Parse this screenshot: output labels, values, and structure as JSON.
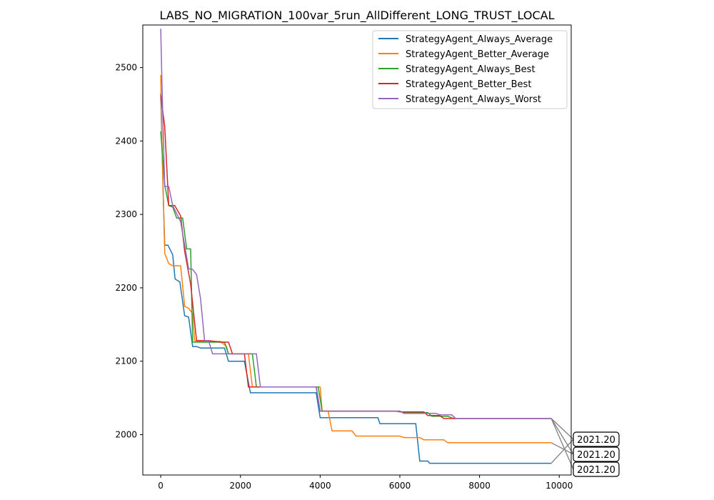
{
  "chart_data": {
    "type": "line",
    "title": "LABS_NO_MIGRATION_100var_5run_AllDifferent_LONG_TRUST_LOCAL",
    "xlabel": "",
    "ylabel": "",
    "xlim": [
      -450,
      10300
    ],
    "ylim": [
      1945,
      2558
    ],
    "xticks": [
      0,
      2000,
      4000,
      6000,
      8000,
      10000
    ],
    "yticks": [
      2000,
      2100,
      2200,
      2300,
      2400,
      2500
    ],
    "xtick_labels": [
      "0",
      "2000",
      "4000",
      "6000",
      "8000",
      "10000"
    ],
    "ytick_labels": [
      "2000",
      "2100",
      "2200",
      "2300",
      "2400",
      "2500"
    ],
    "grid": false,
    "legend_position": "top-right",
    "series": [
      {
        "name": "StrategyAgent_Always_Average",
        "color": "#1f77b4",
        "points": [
          [
            0,
            2465
          ],
          [
            60,
            2330
          ],
          [
            100,
            2258
          ],
          [
            180,
            2258
          ],
          [
            300,
            2245
          ],
          [
            360,
            2212
          ],
          [
            480,
            2208
          ],
          [
            600,
            2162
          ],
          [
            700,
            2160
          ],
          [
            800,
            2120
          ],
          [
            900,
            2120
          ],
          [
            1000,
            2118
          ],
          [
            1600,
            2118
          ],
          [
            1700,
            2100
          ],
          [
            2100,
            2100
          ],
          [
            2250,
            2057
          ],
          [
            3900,
            2057
          ],
          [
            4000,
            2023
          ],
          [
            5450,
            2023
          ],
          [
            5500,
            2015
          ],
          [
            6400,
            2015
          ],
          [
            6500,
            1964
          ],
          [
            6700,
            1964
          ],
          [
            6750,
            1961
          ],
          [
            9800,
            1961
          ]
        ]
      },
      {
        "name": "StrategyAgent_Better_Average",
        "color": "#ff7f0e",
        "points": [
          [
            0,
            2490
          ],
          [
            30,
            2400
          ],
          [
            100,
            2247
          ],
          [
            200,
            2233
          ],
          [
            300,
            2230
          ],
          [
            500,
            2230
          ],
          [
            600,
            2175
          ],
          [
            700,
            2172
          ],
          [
            800,
            2165
          ],
          [
            850,
            2128
          ],
          [
            900,
            2127
          ],
          [
            1500,
            2127
          ],
          [
            1650,
            2120
          ],
          [
            1700,
            2110
          ],
          [
            2200,
            2110
          ],
          [
            2300,
            2065
          ],
          [
            4000,
            2065
          ],
          [
            4050,
            2032
          ],
          [
            4200,
            2032
          ],
          [
            4300,
            2005
          ],
          [
            4800,
            2005
          ],
          [
            4900,
            1998
          ],
          [
            6000,
            1998
          ],
          [
            6100,
            1996
          ],
          [
            6500,
            1996
          ],
          [
            6600,
            1993
          ],
          [
            7100,
            1993
          ],
          [
            7200,
            1989
          ],
          [
            9800,
            1989
          ]
        ]
      },
      {
        "name": "StrategyAgent_Always_Best",
        "color": "#2ca02c",
        "points": [
          [
            0,
            2413
          ],
          [
            100,
            2340
          ],
          [
            200,
            2312
          ],
          [
            300,
            2310
          ],
          [
            400,
            2295
          ],
          [
            550,
            2295
          ],
          [
            650,
            2253
          ],
          [
            750,
            2253
          ],
          [
            800,
            2126
          ],
          [
            1600,
            2126
          ],
          [
            1700,
            2110
          ],
          [
            2300,
            2110
          ],
          [
            2400,
            2065
          ],
          [
            3950,
            2065
          ],
          [
            4050,
            2032
          ],
          [
            6000,
            2032
          ],
          [
            6100,
            2030
          ],
          [
            6700,
            2030
          ],
          [
            6800,
            2025
          ],
          [
            7200,
            2025
          ],
          [
            7350,
            2022
          ],
          [
            9800,
            2022
          ]
        ]
      },
      {
        "name": "StrategyAgent_Better_Best",
        "color": "#d62728",
        "points": [
          [
            0,
            2462
          ],
          [
            100,
            2420
          ],
          [
            200,
            2312
          ],
          [
            350,
            2312
          ],
          [
            500,
            2298
          ],
          [
            600,
            2250
          ],
          [
            750,
            2205
          ],
          [
            900,
            2128
          ],
          [
            1200,
            2128
          ],
          [
            1500,
            2126
          ],
          [
            1700,
            2126
          ],
          [
            1800,
            2110
          ],
          [
            2100,
            2110
          ],
          [
            2200,
            2065
          ],
          [
            3900,
            2065
          ],
          [
            4000,
            2032
          ],
          [
            5900,
            2032
          ],
          [
            6000,
            2031
          ],
          [
            6600,
            2031
          ],
          [
            6700,
            2026
          ],
          [
            7000,
            2026
          ],
          [
            7100,
            2022
          ],
          [
            9800,
            2022
          ]
        ]
      },
      {
        "name": "StrategyAgent_Always_Worst",
        "color": "#9467bd",
        "points": [
          [
            0,
            2553
          ],
          [
            40,
            2460
          ],
          [
            100,
            2338
          ],
          [
            200,
            2338
          ],
          [
            300,
            2312
          ],
          [
            500,
            2290
          ],
          [
            700,
            2226
          ],
          [
            800,
            2225
          ],
          [
            900,
            2218
          ],
          [
            1000,
            2185
          ],
          [
            1100,
            2128
          ],
          [
            1200,
            2128
          ],
          [
            1300,
            2110
          ],
          [
            2400,
            2110
          ],
          [
            2500,
            2065
          ],
          [
            3900,
            2065
          ],
          [
            4000,
            2032
          ],
          [
            6000,
            2032
          ],
          [
            6100,
            2029
          ],
          [
            6900,
            2029
          ],
          [
            7000,
            2027
          ],
          [
            7300,
            2027
          ],
          [
            7400,
            2022
          ],
          [
            9800,
            2022
          ]
        ]
      }
    ],
    "annotations": [
      {
        "text": "2021.20",
        "x": 9800,
        "y": 2022
      },
      {
        "text": "2021.20",
        "x": 9800,
        "y": 2022
      },
      {
        "text": "2021.20",
        "x": 9800,
        "y": 2022
      }
    ]
  }
}
